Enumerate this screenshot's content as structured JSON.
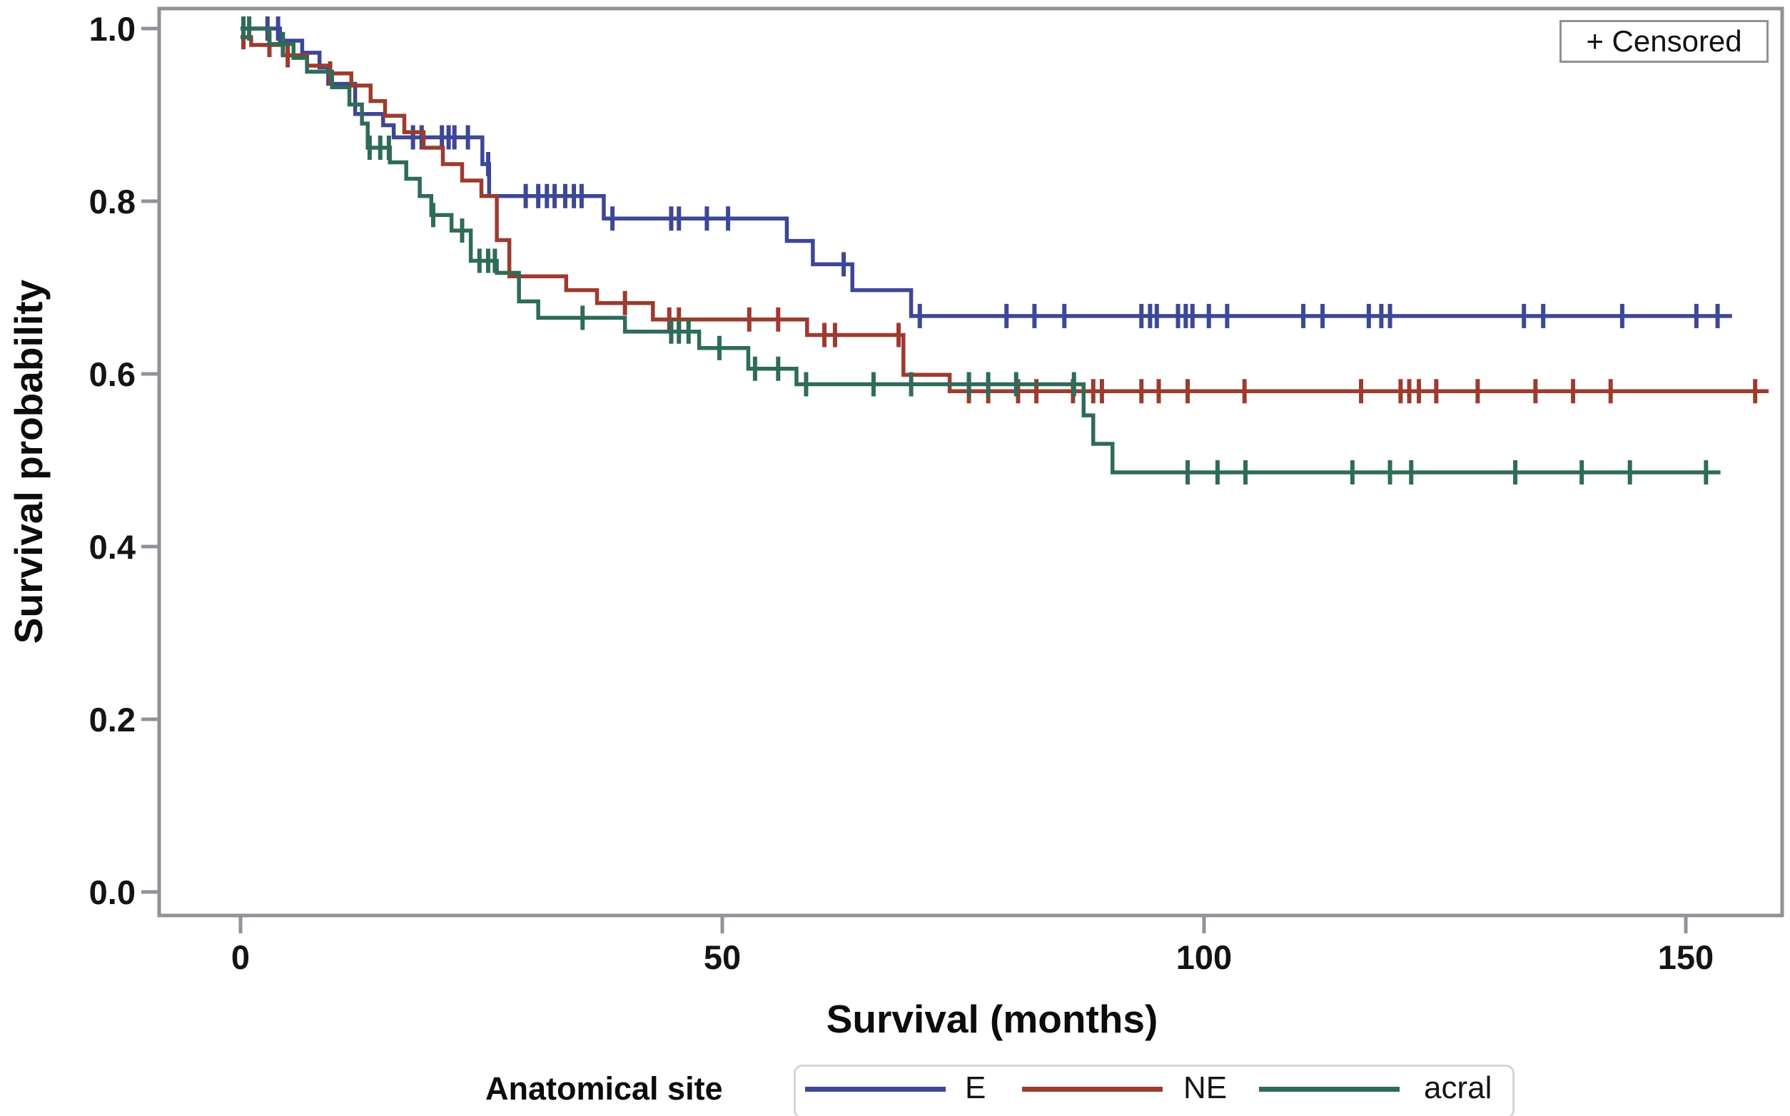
{
  "chart_data": {
    "type": "line",
    "subtype": "kaplan-meier-step-curves",
    "title": "",
    "xlabel": "Survival (months)",
    "ylabel": "Survival probability",
    "censored_note": "+ Censored",
    "grid": false,
    "x_axis": {
      "range": [
        -8.4,
        160.2
      ],
      "ticks": [
        {
          "label": "0",
          "value": 0
        },
        {
          "label": "50",
          "value": 50
        },
        {
          "label": "100",
          "value": 100
        },
        {
          "label": "150",
          "value": 150
        }
      ]
    },
    "y_axis": {
      "range": [
        -0.027,
        1.023
      ],
      "ticks": [
        {
          "label": "0.0",
          "value": 0.0
        },
        {
          "label": "0.2",
          "value": 0.2
        },
        {
          "label": "0.4",
          "value": 0.4
        },
        {
          "label": "0.6",
          "value": 0.6
        },
        {
          "label": "0.8",
          "value": 0.8
        },
        {
          "label": "1.0",
          "value": 1.0
        }
      ]
    },
    "legend": {
      "title": "Anatomical site",
      "position": "bottom"
    },
    "series": [
      {
        "name": "E",
        "color": "#3e4795",
        "end_time": 154.8,
        "steps": [
          [
            0,
            1.0
          ],
          [
            4.1,
            0.986
          ],
          [
            6.4,
            0.972
          ],
          [
            8.2,
            0.955
          ],
          [
            9.1,
            0.936
          ],
          [
            11.9,
            0.901
          ],
          [
            14.8,
            0.888
          ],
          [
            15.9,
            0.874
          ],
          [
            25.1,
            0.843
          ],
          [
            25.8,
            0.806
          ],
          [
            37.7,
            0.78
          ],
          [
            56.7,
            0.754
          ],
          [
            59.4,
            0.727
          ],
          [
            63.5,
            0.697
          ],
          [
            69.6,
            0.667
          ]
        ],
        "censor_times": [
          2.8,
          3.9,
          17.9,
          18.8,
          20.9,
          21.6,
          22.2,
          23.6,
          25.7,
          29.6,
          30.9,
          31.8,
          32.6,
          33.7,
          34.6,
          35.4,
          38.6,
          44.7,
          45.5,
          48.4,
          50.6,
          62.6,
          70.5,
          79.5,
          82.4,
          85.5,
          93.5,
          94.4,
          95.1,
          97.3,
          98.1,
          98.8,
          100.5,
          102.4,
          110.3,
          112.3,
          117.1,
          118.4,
          119.3,
          133.2,
          135.2,
          143.4,
          151.1,
          153.3
        ]
      },
      {
        "name": "NE",
        "color": "#9d3b2e",
        "end_time": 158.6,
        "steps": [
          [
            0,
            0.99
          ],
          [
            1.1,
            0.981
          ],
          [
            4.4,
            0.969
          ],
          [
            6.9,
            0.957
          ],
          [
            9.3,
            0.948
          ],
          [
            11.5,
            0.934
          ],
          [
            13.5,
            0.916
          ],
          [
            15.0,
            0.899
          ],
          [
            17.0,
            0.88
          ],
          [
            19.0,
            0.862
          ],
          [
            21.0,
            0.843
          ],
          [
            23.0,
            0.824
          ],
          [
            25.0,
            0.806
          ],
          [
            26.6,
            0.755
          ],
          [
            27.9,
            0.713
          ],
          [
            33.8,
            0.697
          ],
          [
            37.0,
            0.682
          ],
          [
            42.8,
            0.663
          ],
          [
            58.8,
            0.645
          ],
          [
            68.8,
            0.599
          ],
          [
            73.6,
            0.58
          ]
        ],
        "censor_times": [
          0.3,
          3.0,
          4.9,
          9.3,
          39.9,
          44.5,
          45.5,
          52.8,
          55.8,
          60.6,
          61.7,
          68.3,
          75.6,
          77.6,
          80.7,
          82.6,
          86.4,
          88.5,
          89.4,
          93.5,
          95.3,
          98.3,
          104.2,
          116.3,
          120.4,
          121.3,
          122.3,
          124.1,
          128.4,
          134.4,
          138.3,
          142.2,
          157.2
        ]
      },
      {
        "name": "acral",
        "color": "#2f6b59",
        "end_time": 153.6,
        "steps": [
          [
            0,
            1.0
          ],
          [
            3.0,
            0.982
          ],
          [
            5.5,
            0.966
          ],
          [
            6.9,
            0.95
          ],
          [
            9.5,
            0.932
          ],
          [
            11.3,
            0.912
          ],
          [
            12.6,
            0.89
          ],
          [
            13.2,
            0.862
          ],
          [
            15.5,
            0.845
          ],
          [
            17.2,
            0.826
          ],
          [
            18.6,
            0.806
          ],
          [
            19.8,
            0.784
          ],
          [
            21.9,
            0.766
          ],
          [
            23.9,
            0.731
          ],
          [
            26.6,
            0.717
          ],
          [
            28.9,
            0.684
          ],
          [
            30.9,
            0.665
          ],
          [
            39.9,
            0.649
          ],
          [
            47.6,
            0.63
          ],
          [
            52.7,
            0.606
          ],
          [
            57.7,
            0.588
          ],
          [
            87.5,
            0.552
          ],
          [
            88.5,
            0.519
          ],
          [
            90.5,
            0.486
          ]
        ],
        "censor_times": [
          0.3,
          0.9,
          4.4,
          13.4,
          14.5,
          15.4,
          20.0,
          23.0,
          24.8,
          25.7,
          26.4,
          35.5,
          44.7,
          45.5,
          46.5,
          49.7,
          53.4,
          55.8,
          58.7,
          65.7,
          69.6,
          75.6,
          77.6,
          80.5,
          86.5,
          98.3,
          101.4,
          104.3,
          115.4,
          119.3,
          121.5,
          132.3,
          139.2,
          144.2,
          152.1
        ]
      }
    ]
  }
}
